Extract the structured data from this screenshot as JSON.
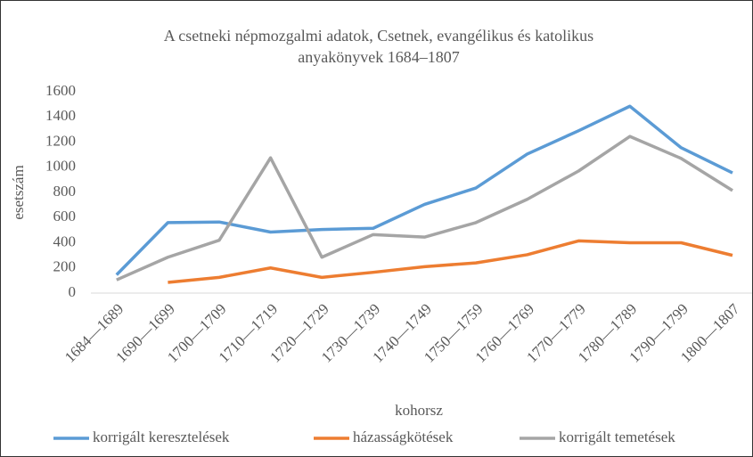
{
  "chart_data": {
    "type": "line",
    "title": [
      "A csetneki népmozgalmi adatok, Csetnek, evangélikus és katolikus",
      "anyakönyvek  1684–1807"
    ],
    "x_label": "kohorsz",
    "y_label": "esetszám",
    "categories": [
      "1684—1689",
      "1690—1699",
      "1700—1709",
      "1710—1719",
      "1720—1729",
      "1730—1739",
      "1740—1749",
      "1750—1759",
      "1760—1769",
      "1770—1779",
      "1780—1789",
      "1790—1799",
      "1800—1807"
    ],
    "series": [
      {
        "name": "korrigált keresztelések",
        "color": "#5b9bd5",
        "values": [
          145,
          560,
          565,
          485,
          505,
          515,
          705,
          835,
          1105,
          1290,
          1485,
          1155,
          955
        ]
      },
      {
        "name": "házasságkötések",
        "color": "#ed7d31",
        "values": [
          null,
          85,
          125,
          200,
          125,
          165,
          210,
          240,
          305,
          415,
          400,
          400,
          300
        ]
      },
      {
        "name": "korrigált temetések",
        "color": "#a5a5a5",
        "values": [
          105,
          285,
          420,
          1075,
          285,
          465,
          445,
          560,
          745,
          970,
          1245,
          1070,
          815
        ]
      }
    ],
    "ylim": [
      0,
      1600
    ],
    "yticks": [
      0,
      200,
      400,
      600,
      800,
      1000,
      1200,
      1400,
      1600
    ],
    "grid": false,
    "legend": "bottom"
  }
}
